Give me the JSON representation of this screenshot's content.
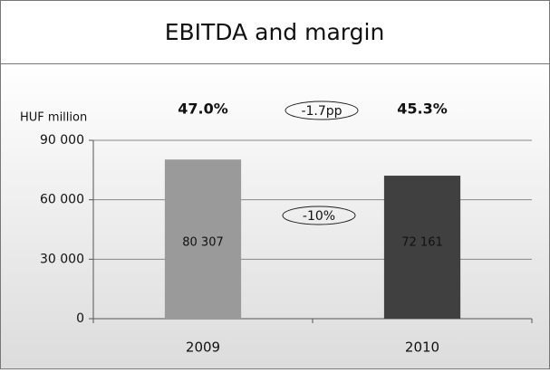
{
  "chart_data": {
    "type": "bar",
    "title": "EBITDA and margin",
    "y_axis_label": "HUF million",
    "categories": [
      "2009",
      "2010"
    ],
    "series": [
      {
        "name": "EBITDA",
        "colors": [
          "#9a9a9a",
          "#404040"
        ],
        "values": [
          80307,
          72161
        ],
        "value_labels": [
          "80 307",
          "72 161"
        ]
      }
    ],
    "ylim": [
      0,
      90000
    ],
    "yticks": [
      0,
      {
        "value": 30000,
        "label": "30 000"
      },
      {
        "value": 60000,
        "label": "60 000"
      },
      {
        "value": 90000,
        "label": "90 000"
      }
    ],
    "grid": true,
    "margin_labels": [
      "47.0%",
      "45.3%"
    ],
    "annotations": [
      "-1.7pp",
      "-10%"
    ]
  }
}
